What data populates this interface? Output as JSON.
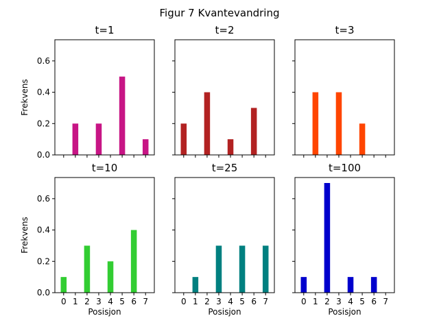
{
  "suptitle": "Figur 7 Kvantevandring",
  "chart_data": [
    {
      "type": "bar",
      "title": "t=1",
      "categories": [
        "0",
        "1",
        "2",
        "3",
        "4",
        "5",
        "6",
        "7"
      ],
      "values": [
        0,
        0.2,
        0,
        0.2,
        0,
        0.5,
        0,
        0.1
      ],
      "color": "#c71585",
      "xlabel": "",
      "ylabel": "Frekvens",
      "ylim": [
        0,
        0.735
      ],
      "yticks": [
        "0.0",
        "0.2",
        "0.4",
        "0.6"
      ]
    },
    {
      "type": "bar",
      "title": "t=2",
      "categories": [
        "0",
        "1",
        "2",
        "3",
        "4",
        "5",
        "6",
        "7"
      ],
      "values": [
        0.2,
        0,
        0.4,
        0,
        0.1,
        0,
        0.3,
        0
      ],
      "color": "#b22222",
      "xlabel": "",
      "ylabel": "",
      "ylim": [
        0,
        0.735
      ],
      "yticks": [
        "0.0",
        "0.2",
        "0.4",
        "0.6"
      ]
    },
    {
      "type": "bar",
      "title": "t=3",
      "categories": [
        "0",
        "1",
        "2",
        "3",
        "4",
        "5",
        "6",
        "7"
      ],
      "values": [
        0,
        0.4,
        0,
        0.4,
        0,
        0.2,
        0,
        0
      ],
      "color": "#ff4500",
      "xlabel": "",
      "ylabel": "",
      "ylim": [
        0,
        0.735
      ],
      "yticks": [
        "0.0",
        "0.2",
        "0.4",
        "0.6"
      ]
    },
    {
      "type": "bar",
      "title": "t=10",
      "categories": [
        "0",
        "1",
        "2",
        "3",
        "4",
        "5",
        "6",
        "7"
      ],
      "values": [
        0.1,
        0,
        0.3,
        0,
        0.2,
        0,
        0.4,
        0
      ],
      "color": "#32cd32",
      "xlabel": "Posisjon",
      "ylabel": "Frekvens",
      "ylim": [
        0,
        0.735
      ],
      "yticks": [
        "0.0",
        "0.2",
        "0.4",
        "0.6"
      ]
    },
    {
      "type": "bar",
      "title": "t=25",
      "categories": [
        "0",
        "1",
        "2",
        "3",
        "4",
        "5",
        "6",
        "7"
      ],
      "values": [
        0,
        0.1,
        0,
        0.3,
        0,
        0.3,
        0,
        0.3
      ],
      "color": "#008080",
      "xlabel": "Posisjon",
      "ylabel": "",
      "ylim": [
        0,
        0.735
      ],
      "yticks": [
        "0.0",
        "0.2",
        "0.4",
        "0.6"
      ]
    },
    {
      "type": "bar",
      "title": "t=100",
      "categories": [
        "0",
        "1",
        "2",
        "3",
        "4",
        "5",
        "6",
        "7"
      ],
      "values": [
        0.1,
        0,
        0.7,
        0,
        0.1,
        0,
        0.1,
        0
      ],
      "color": "#0000cd",
      "xlabel": "Posisjon",
      "ylabel": "",
      "ylim": [
        0,
        0.735
      ],
      "yticks": [
        "0.0",
        "0.2",
        "0.4",
        "0.6"
      ]
    }
  ]
}
